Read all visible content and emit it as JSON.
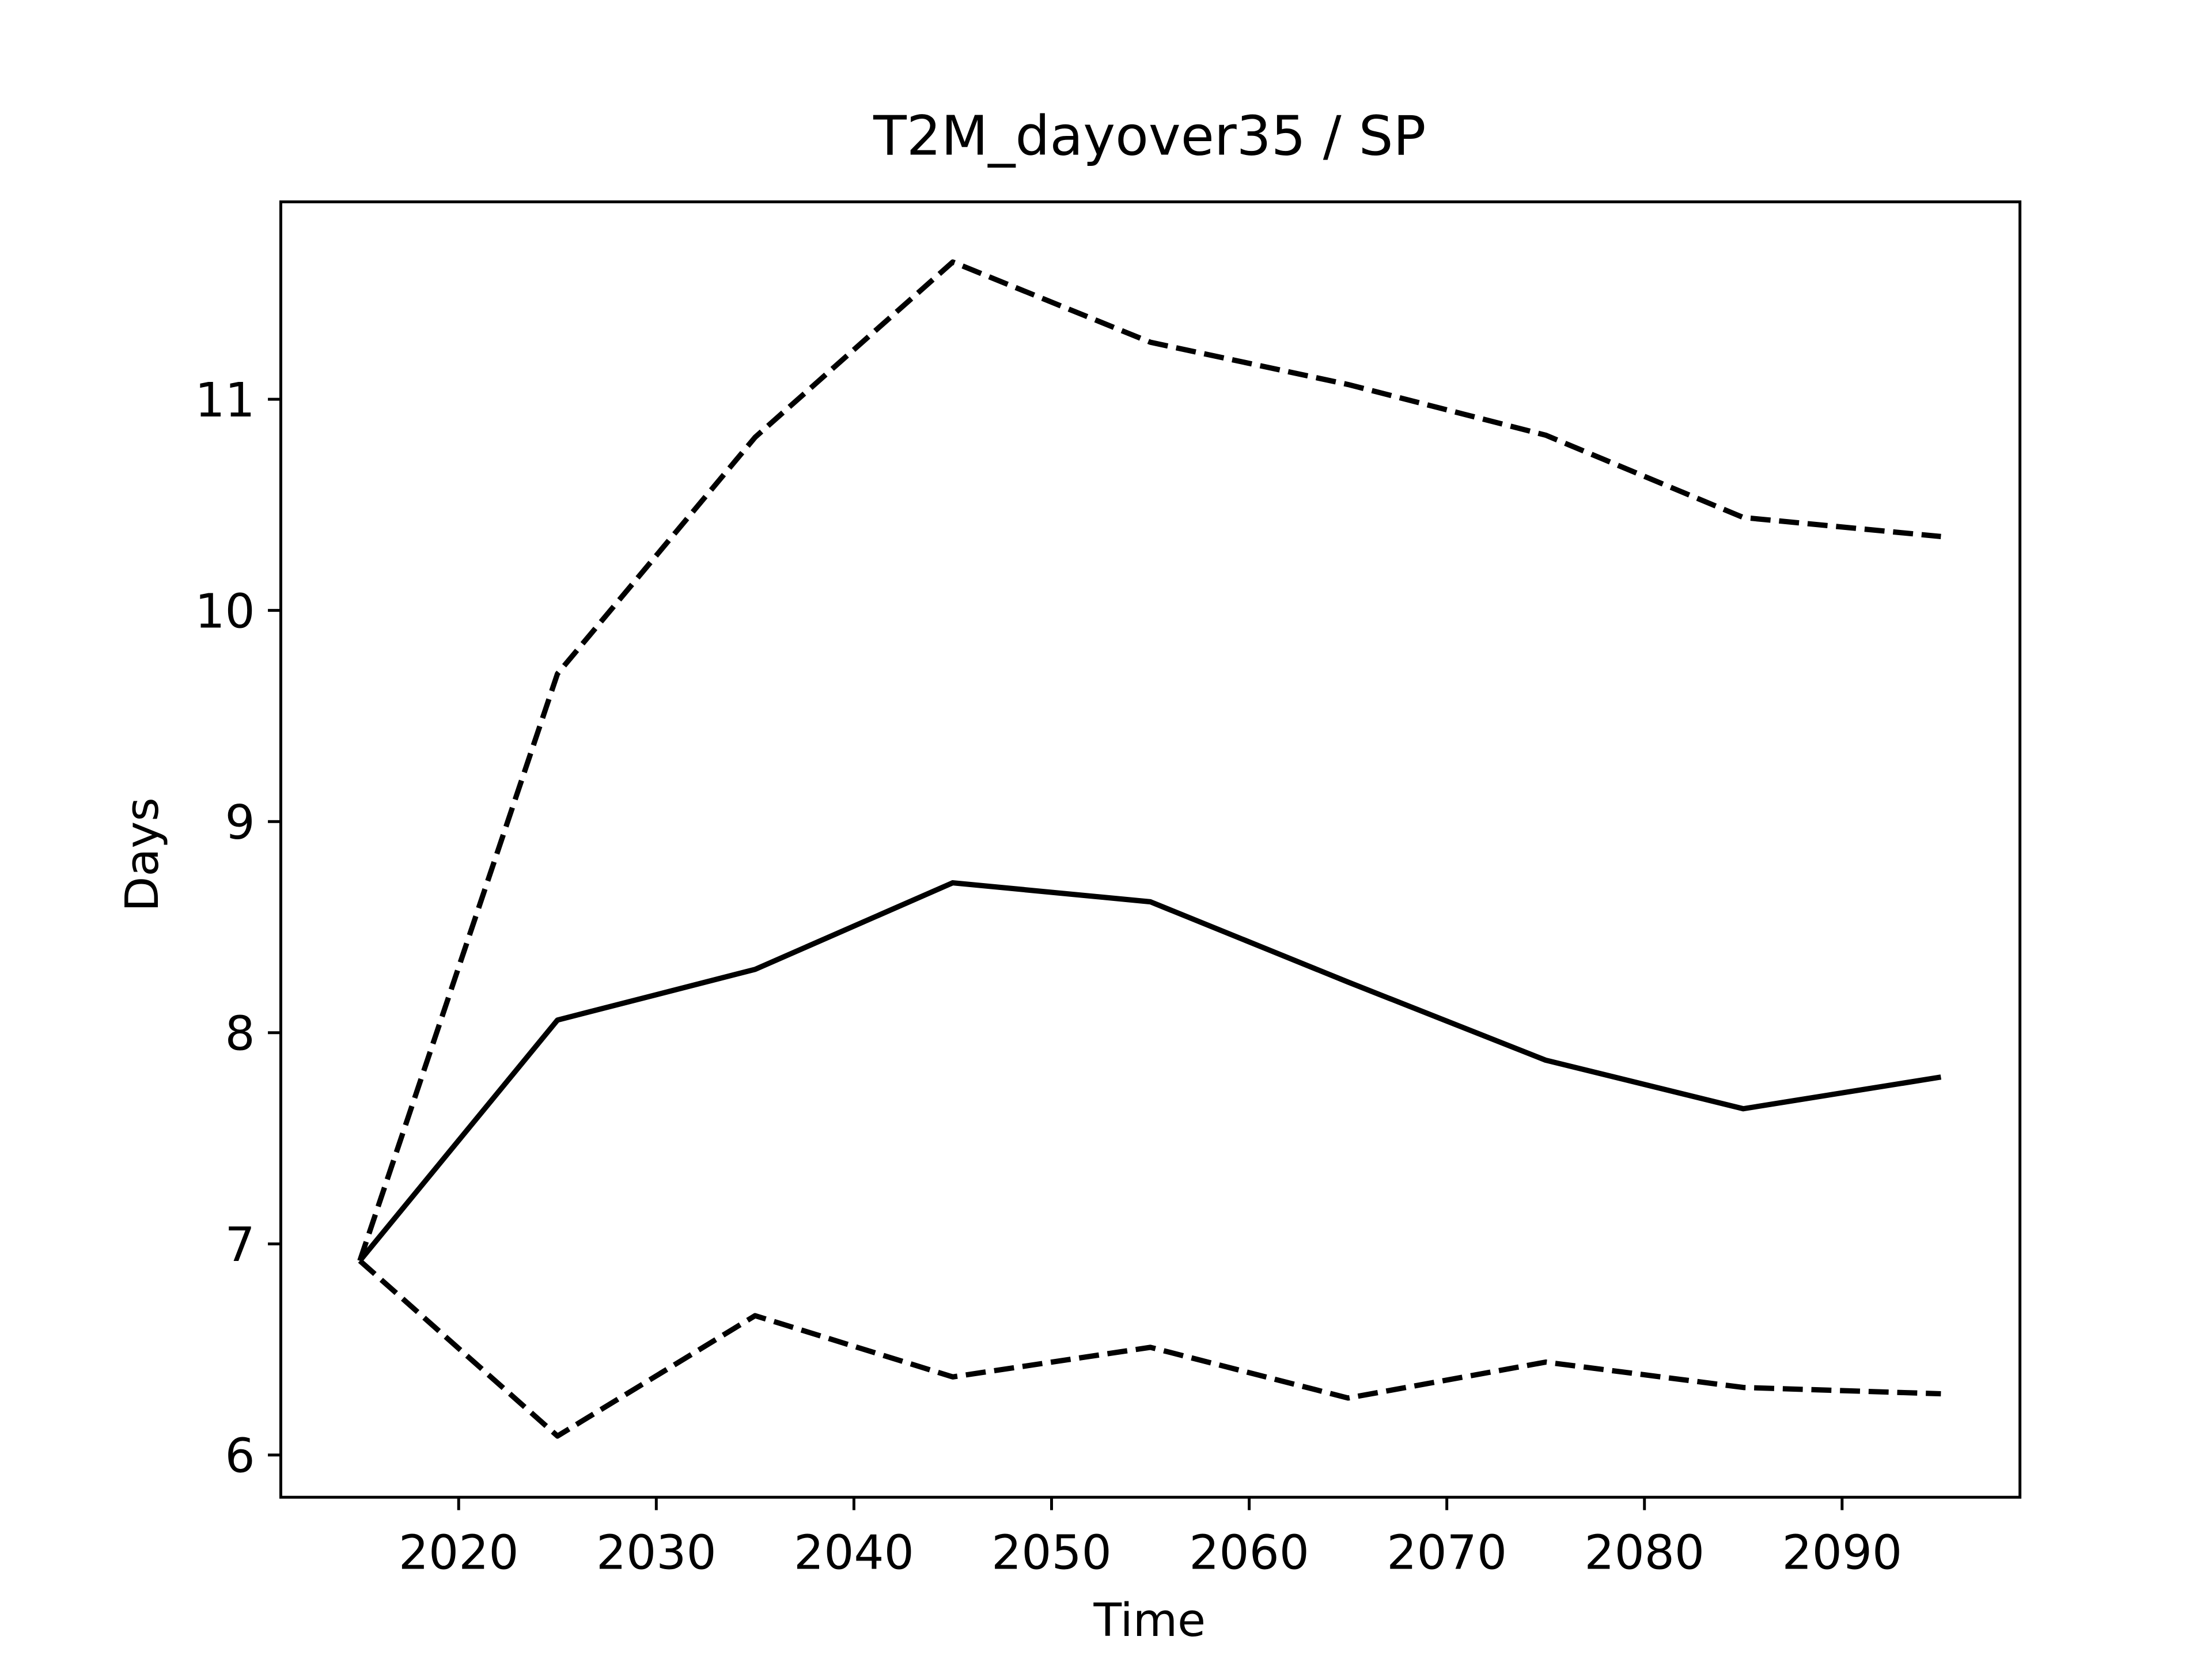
{
  "chart_data": {
    "type": "line",
    "title": "T2M_dayover35 / SP",
    "xlabel": "Time",
    "ylabel": "Days",
    "x": [
      2015,
      2025,
      2035,
      2045,
      2055,
      2065,
      2075,
      2085,
      2095
    ],
    "series": [
      {
        "color": "#000000",
        "linestyle": "solid",
        "values": [
          6.92,
          8.06,
          8.3,
          8.71,
          8.62,
          8.24,
          7.87,
          7.64,
          7.79
        ]
      },
      {
        "color": "#000000",
        "linestyle": "dashed",
        "values": [
          6.92,
          9.7,
          10.82,
          11.65,
          11.27,
          11.07,
          10.83,
          10.44,
          10.35
        ]
      },
      {
        "color": "#000000",
        "linestyle": "dashed",
        "values": [
          6.92,
          6.09,
          6.66,
          6.37,
          6.51,
          6.27,
          6.44,
          6.32,
          6.29
        ]
      }
    ],
    "xlim": [
      2011,
      2099
    ],
    "ylim": [
      5.8,
      11.935
    ],
    "xticks": [
      2020,
      2030,
      2040,
      2050,
      2060,
      2070,
      2080,
      2090
    ],
    "yticks": [
      6,
      7,
      8,
      9,
      10,
      11
    ],
    "grid": false
  }
}
